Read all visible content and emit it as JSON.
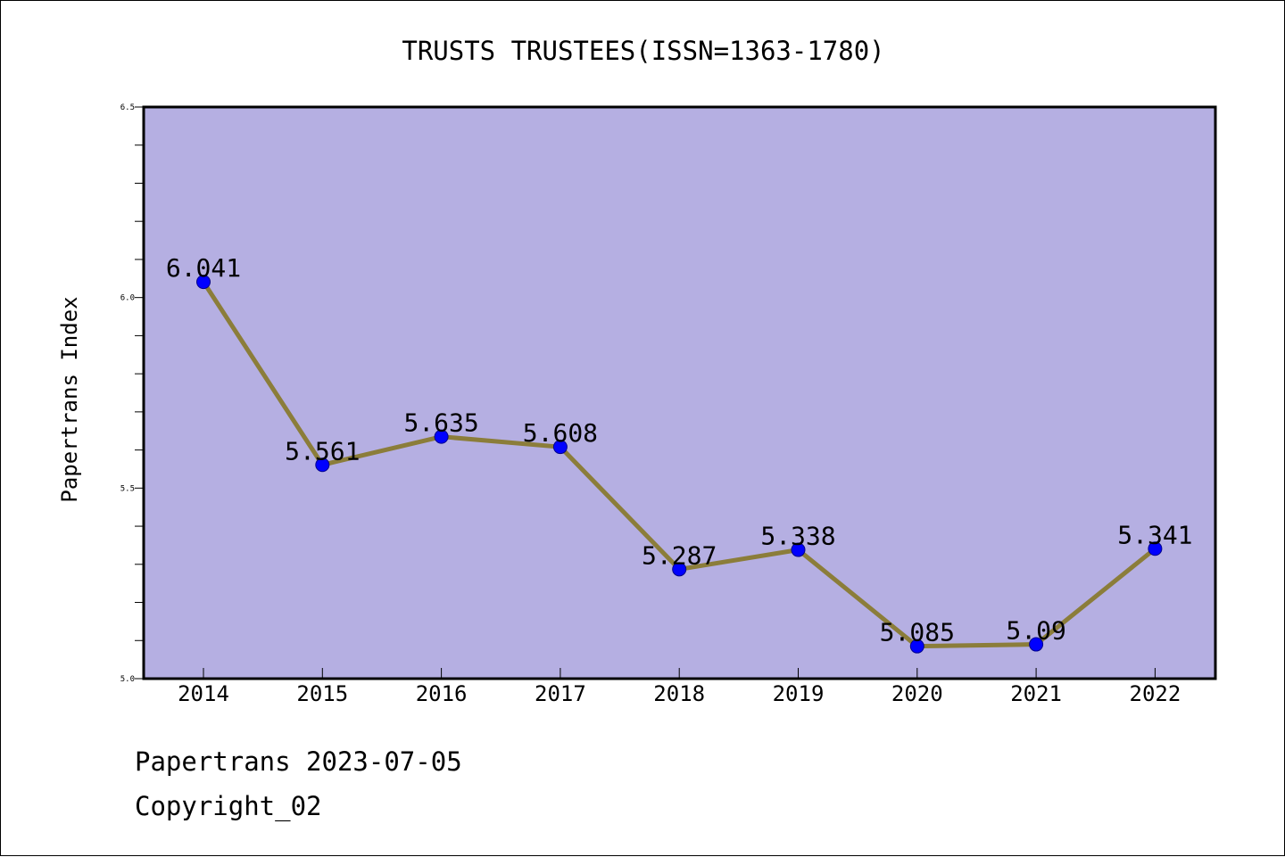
{
  "chart_data": {
    "type": "line",
    "title": "TRUSTS TRUSTEES(ISSN=1363-1780)",
    "xlabel": "",
    "ylabel": "Papertrans Index",
    "categories": [
      "2014",
      "2015",
      "2016",
      "2017",
      "2018",
      "2019",
      "2020",
      "2021",
      "2022"
    ],
    "values": [
      6.041,
      5.561,
      5.635,
      5.608,
      5.287,
      5.338,
      5.085,
      5.09,
      5.341
    ],
    "data_labels": [
      "6.041",
      "5.561",
      "5.635",
      "5.608",
      "5.287",
      "5.338",
      "5.085",
      "5.09",
      "5.341"
    ],
    "ylim": [
      5.0,
      6.5
    ],
    "yticks": [
      5.0,
      5.5,
      6.0,
      6.5
    ],
    "ytick_labels": [
      "5.0",
      "5.5",
      "6.0",
      "6.5"
    ],
    "y_minor_step": 0.1,
    "grid": false,
    "legend": "none",
    "colors": {
      "plot_background": "#b5afe2",
      "line": "#8b7d3a",
      "marker": "#0000ff",
      "axes": "#000000"
    }
  },
  "footer": {
    "date_line": "Papertrans 2023-07-05",
    "copyright_line": "Copyright_02"
  }
}
